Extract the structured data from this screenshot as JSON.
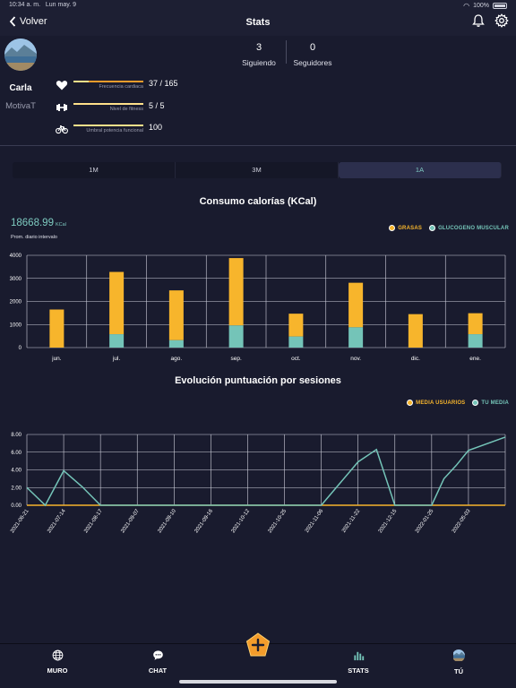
{
  "status_bar": {
    "time": "10:34 a. m.",
    "date": "Lun may. 9",
    "battery": "100%"
  },
  "nav": {
    "back_label": "Volver",
    "title": "Stats"
  },
  "profile": {
    "name": "Carla",
    "subtitle": "MotivaT"
  },
  "counters": [
    {
      "value": "3",
      "label": "Siguiendo"
    },
    {
      "value": "0",
      "label": "Seguidores"
    }
  ],
  "metrics": [
    {
      "icon": "heart-icon",
      "label": "Frecuencia cardiaca",
      "value": "37 / 165",
      "level": 0.22
    },
    {
      "icon": "dumbbell-icon",
      "label": "Nivel de fitness",
      "value": "5 / 5",
      "level": 1.0
    },
    {
      "icon": "bike-icon",
      "label": "Umbral potencia funcional",
      "value": "100",
      "level": 1.0
    }
  ],
  "period_tabs": [
    {
      "label": "1M",
      "active": false
    },
    {
      "label": "3M",
      "active": false
    },
    {
      "label": "1A",
      "active": true
    }
  ],
  "calories": {
    "title": "Consumo calorías (KCal)",
    "total_value": "18668.99",
    "total_unit": "KCal",
    "total_caption": "Prom. diario intervalo"
  },
  "scores": {
    "title": "Evolución puntuación por sesiones"
  },
  "colors": {
    "accent_yellow": "#f7b52c",
    "accent_teal": "#74c4b8",
    "background": "#191b2e"
  },
  "chart_data": [
    {
      "type": "bar",
      "stacked": true,
      "title": "Consumo calorías (KCal)",
      "categories": [
        "jun.",
        "jul.",
        "ago.",
        "sep.",
        "oct.",
        "nov.",
        "dic.",
        "ene."
      ],
      "series": [
        {
          "name": "GLUCOGENO MUSCULAR",
          "color": "#74c4b8",
          "values": [
            0,
            580,
            320,
            960,
            480,
            880,
            0,
            580
          ]
        },
        {
          "name": "GRASAS",
          "color": "#f7b52c",
          "values": [
            1650,
            2700,
            2160,
            2920,
            990,
            1930,
            1450,
            910
          ]
        }
      ],
      "ylim": [
        0,
        4000
      ],
      "yticks": [
        "0",
        "1000",
        "2000",
        "3000",
        "4000"
      ],
      "grid": true,
      "legend": "top-right"
    },
    {
      "type": "line",
      "title": "Evolución puntuación por sesiones",
      "x": [
        "2021-06-21",
        "2021-06-30",
        "2021-07-14",
        "2021-08-02",
        "2021-08-17",
        "2021-09-07",
        "2021-09-10",
        "2021-09-16",
        "2021-10-12",
        "2021-10-25",
        "2021-11-06",
        "2021-11-22",
        "2021-12-01",
        "2021-12-15",
        "2022-01-25",
        "2022-02-15",
        "2022-04-05",
        "2022-05-03",
        "2022-05-09"
      ],
      "xticks": [
        "2021-06-21",
        "2021-07-14",
        "2021-08-17",
        "2021-09-07",
        "2021-09-10",
        "2021-09-16",
        "2021-10-12",
        "2021-10-25",
        "2021-11-06",
        "2021-11-22",
        "2021-12-15",
        "2022-01-25",
        "2022-05-03"
      ],
      "series": [
        {
          "name": "MEDIA USUARIOS",
          "color": "#f7b52c",
          "values": [
            0,
            0,
            0,
            0,
            0,
            0,
            0,
            0,
            0,
            0,
            0,
            0,
            0,
            0,
            0,
            0,
            0,
            0,
            0
          ]
        },
        {
          "name": "TU MEDIA",
          "color": "#74c4b8",
          "values": [
            2.0,
            0,
            3.9,
            2.1,
            0,
            0,
            0,
            0,
            0,
            0,
            0,
            4.9,
            6.3,
            0,
            0,
            3.0,
            4.5,
            6.2,
            7.7
          ]
        }
      ],
      "ylim": [
        0,
        8
      ],
      "yticks": [
        "0.00",
        "2.00",
        "4.00",
        "6.00",
        "8.00"
      ],
      "grid": true,
      "legend": "top-right"
    }
  ],
  "bottom_nav": [
    {
      "icon": "globe-icon",
      "label": "MURO"
    },
    {
      "icon": "chat-icon",
      "label": "CHAT"
    },
    {
      "icon": "stats-icon",
      "label": "STATS"
    },
    {
      "icon": "user-avatar-icon",
      "label": "TÚ"
    }
  ]
}
